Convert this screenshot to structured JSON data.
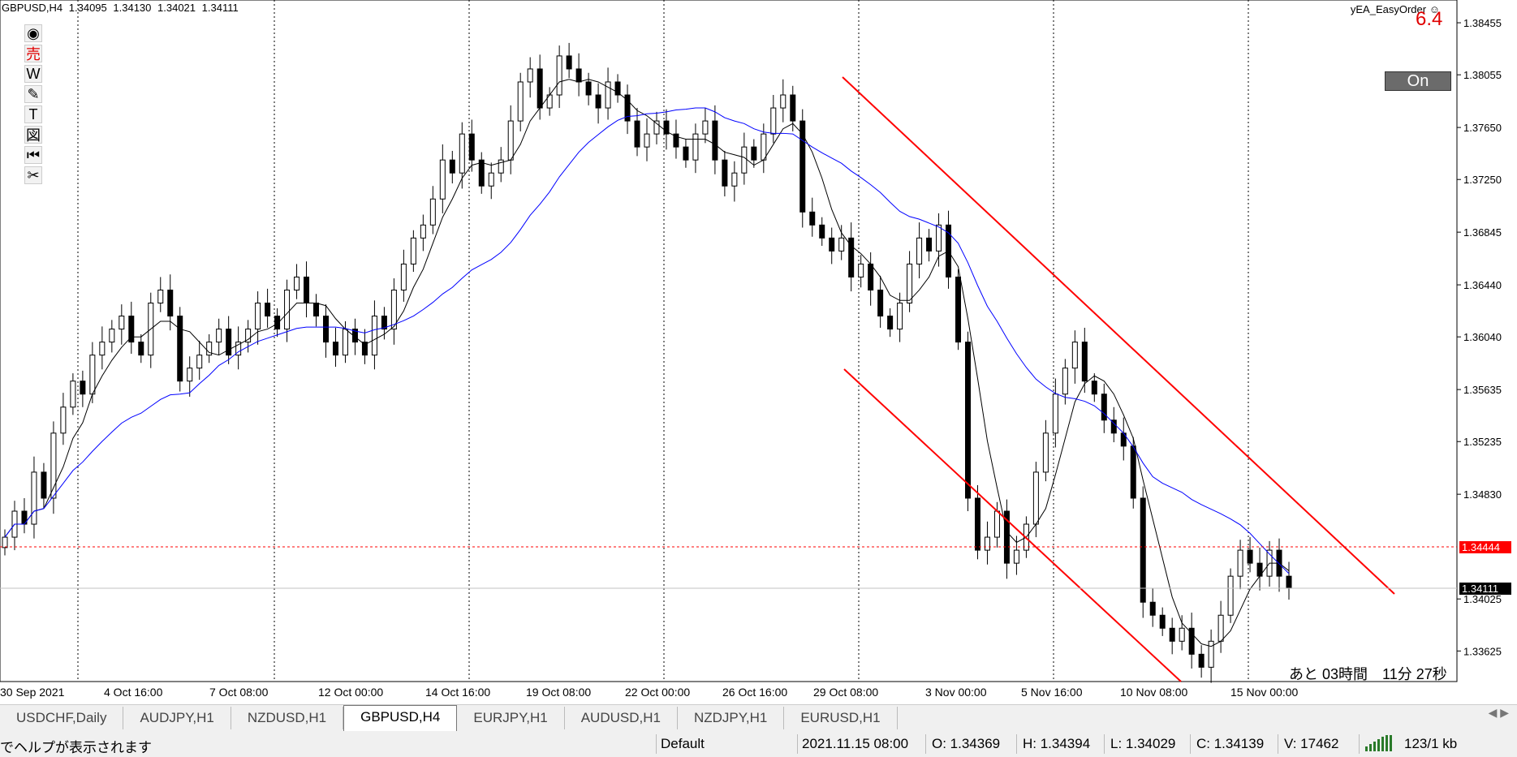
{
  "header": {
    "symbol": "GBPUSD,H4",
    "open": "1.34095",
    "high": "1.34130",
    "low": "1.34021",
    "close": "1.34111"
  },
  "ea": {
    "name": "yEA_EasyOrder",
    "value": "6.4",
    "button": "On",
    "icon": "smiley-icon"
  },
  "toolbar": [
    {
      "name": "eye-icon",
      "glyph": "◉"
    },
    {
      "name": "sell-icon",
      "glyph": "売"
    },
    {
      "name": "w-icon",
      "glyph": "W"
    },
    {
      "name": "pencil-icon",
      "glyph": "✎"
    },
    {
      "name": "text-icon",
      "glyph": "T"
    },
    {
      "name": "drawing-icon",
      "glyph": "図"
    },
    {
      "name": "rewind-icon",
      "glyph": "⏮"
    },
    {
      "name": "scissors-icon",
      "glyph": "✂"
    }
  ],
  "countdown": "あと 03時間　11分 27秒",
  "current_price": "1.34111",
  "line_price": "1.34444",
  "colors": {
    "up": "#ffffff",
    "down": "#000000",
    "ma_fast": "#000000",
    "ma_slow": "#0000ff",
    "channel": "#ff0000",
    "price_line": "#ff0000"
  },
  "chart_data": {
    "type": "candlestick",
    "y_ticks": [
      1.38455,
      1.38055,
      1.3765,
      1.3725,
      1.36845,
      1.3644,
      1.3604,
      1.35635,
      1.35235,
      1.3483,
      1.34025,
      1.33625
    ],
    "x_labels": [
      "30 Sep 2021",
      "4 Oct 16:00",
      "7 Oct 08:00",
      "12 Oct 00:00",
      "14 Oct 16:00",
      "19 Oct 08:00",
      "22 Oct 00:00",
      "26 Oct 16:00",
      "29 Oct 08:00",
      "3 Nov 00:00",
      "5 Nov 16:00",
      "10 Nov 08:00",
      "15 Nov 00:00"
    ],
    "ylim": [
      1.3339,
      1.3863
    ],
    "grid": "vertical dotted",
    "series": [
      {
        "name": "MA fast",
        "color": "#000000"
      },
      {
        "name": "MA slow",
        "color": "#0000ff"
      }
    ],
    "closes": [
      1.345,
      1.347,
      1.346,
      1.35,
      1.348,
      1.353,
      1.355,
      1.357,
      1.356,
      1.359,
      1.36,
      1.361,
      1.362,
      1.36,
      1.359,
      1.363,
      1.364,
      1.362,
      1.357,
      1.358,
      1.359,
      1.36,
      1.361,
      1.359,
      1.36,
      1.361,
      1.363,
      1.362,
      1.361,
      1.364,
      1.365,
      1.363,
      1.362,
      1.36,
      1.359,
      1.361,
      1.36,
      1.359,
      1.362,
      1.361,
      1.364,
      1.366,
      1.368,
      1.369,
      1.371,
      1.374,
      1.373,
      1.376,
      1.374,
      1.372,
      1.373,
      1.374,
      1.377,
      1.38,
      1.381,
      1.378,
      1.379,
      1.382,
      1.381,
      1.38,
      1.379,
      1.378,
      1.38,
      1.379,
      1.377,
      1.375,
      1.376,
      1.377,
      1.376,
      1.375,
      1.374,
      1.376,
      1.377,
      1.374,
      1.372,
      1.373,
      1.375,
      1.374,
      1.376,
      1.378,
      1.379,
      1.377,
      1.37,
      1.369,
      1.368,
      1.367,
      1.368,
      1.365,
      1.366,
      1.364,
      1.362,
      1.361,
      1.363,
      1.366,
      1.368,
      1.367,
      1.369,
      1.365,
      1.36,
      1.348,
      1.344,
      1.345,
      1.347,
      1.343,
      1.344,
      1.346,
      1.35,
      1.353,
      1.356,
      1.358,
      1.36,
      1.357,
      1.356,
      1.354,
      1.353,
      1.352,
      1.348,
      1.34,
      1.339,
      1.338,
      1.337,
      1.338,
      1.336,
      1.335,
      1.337,
      1.339,
      1.342,
      1.344,
      1.343,
      1.342,
      1.344,
      1.342,
      1.3411
    ]
  }
}
